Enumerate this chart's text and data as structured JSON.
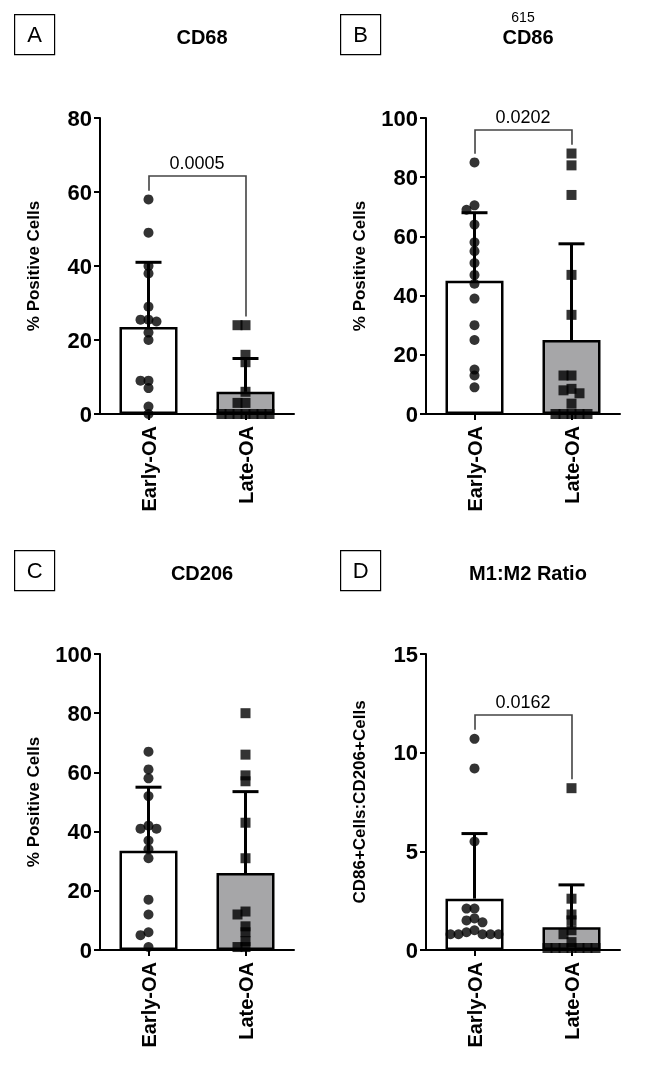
{
  "chart_data": [
    {
      "type": "bar",
      "title": "CD68",
      "ylabel": "% Positive Cells",
      "categories": [
        "Early-OA",
        "Late-OA"
      ],
      "ylim": [
        0,
        80
      ],
      "yticks": [
        0,
        20,
        40,
        60,
        80
      ],
      "grid": false,
      "annotations": [
        "A",
        "0.0005"
      ],
      "series": [
        {
          "type": "bar",
          "values": [
            23.5,
            6
          ],
          "colors": [
            "#ffffff",
            "#a6a6a8"
          ],
          "errors": [
            [
              23.5,
              41
            ],
            [
              6,
              15
            ]
          ]
        },
        {
          "type": "scatter",
          "marker": "circle",
          "color": "#000000",
          "x": [
            "Early-OA",
            "Early-OA",
            "Early-OA",
            "Early-OA",
            "Early-OA",
            "Early-OA",
            "Early-OA",
            "Early-OA",
            "Early-OA",
            "Early-OA",
            "Early-OA",
            "Early-OA",
            "Early-OA",
            "Early-OA",
            "Early-OA"
          ],
          "values": [
            58,
            49,
            40,
            38,
            29,
            25.5,
            25.5,
            25,
            22,
            20,
            9,
            9,
            7,
            2,
            0
          ]
        },
        {
          "type": "scatter",
          "marker": "square",
          "color": "#000000",
          "x": [
            "Late-OA",
            "Late-OA",
            "Late-OA",
            "Late-OA",
            "Late-OA",
            "Late-OA",
            "Late-OA",
            "Late-OA",
            "Late-OA",
            "Late-OA",
            "Late-OA",
            "Late-OA",
            "Late-OA",
            "Late-OA"
          ],
          "values": [
            24,
            24,
            16,
            14,
            6,
            3,
            3,
            0,
            0,
            0,
            0,
            0,
            0,
            0
          ]
        }
      ]
    },
    {
      "type": "bar",
      "title": "CD86",
      "ylabel": "% Positive Cells",
      "categories": [
        "Early-OA",
        "Late-OA"
      ],
      "ylim": [
        0,
        100
      ],
      "yticks": [
        0,
        20,
        40,
        60,
        80,
        100
      ],
      "grid": false,
      "annotations": [
        "B",
        "0.0202",
        "615"
      ],
      "series": [
        {
          "type": "bar",
          "values": [
            45,
            25
          ],
          "colors": [
            "#ffffff",
            "#a6a6a8"
          ],
          "errors": [
            [
              45,
              68
            ],
            [
              25,
              57.5
            ]
          ]
        },
        {
          "type": "scatter",
          "marker": "circle",
          "color": "#000000",
          "x": [
            "Early-OA",
            "Early-OA",
            "Early-OA",
            "Early-OA",
            "Early-OA",
            "Early-OA",
            "Early-OA",
            "Early-OA",
            "Early-OA",
            "Early-OA",
            "Early-OA",
            "Early-OA",
            "Early-OA",
            "Early-OA",
            "Early-OA"
          ],
          "values": [
            85,
            70.5,
            69,
            64,
            58,
            55,
            51,
            47,
            44,
            39,
            30,
            25,
            15,
            13,
            9
          ]
        },
        {
          "type": "scatter",
          "marker": "square",
          "color": "#000000",
          "x": [
            "Late-OA",
            "Late-OA",
            "Late-OA",
            "Late-OA",
            "Late-OA",
            "Late-OA",
            "Late-OA",
            "Late-OA",
            "Late-OA",
            "Late-OA",
            "Late-OA",
            "Late-OA",
            "Late-OA",
            "Late-OA",
            "Late-OA",
            "Late-OA"
          ],
          "values": [
            88,
            84,
            74,
            47,
            33.5,
            13,
            13,
            8.5,
            8,
            7,
            3.5,
            0,
            0,
            0,
            0,
            0
          ]
        }
      ]
    },
    {
      "type": "bar",
      "title": "CD206",
      "ylabel": "% Positive Cells",
      "categories": [
        "Early-OA",
        "Late-OA"
      ],
      "ylim": [
        0,
        100
      ],
      "yticks": [
        0,
        20,
        40,
        60,
        80,
        100
      ],
      "grid": false,
      "annotations": [
        "C"
      ],
      "series": [
        {
          "type": "bar",
          "values": [
            33.5,
            26
          ],
          "colors": [
            "#ffffff",
            "#a6a6a8"
          ],
          "errors": [
            [
              33.5,
              55
            ],
            [
              26,
              53.5
            ]
          ]
        },
        {
          "type": "scatter",
          "marker": "circle",
          "color": "#000000",
          "x": [
            "Early-OA",
            "Early-OA",
            "Early-OA",
            "Early-OA",
            "Early-OA",
            "Early-OA",
            "Early-OA",
            "Early-OA",
            "Early-OA",
            "Early-OA",
            "Early-OA",
            "Early-OA",
            "Early-OA",
            "Early-OA",
            "Early-OA"
          ],
          "values": [
            67,
            61,
            58,
            52,
            42,
            41,
            41,
            37,
            34,
            31,
            17,
            12,
            6,
            5,
            1
          ]
        },
        {
          "type": "scatter",
          "marker": "square",
          "color": "#000000",
          "x": [
            "Late-OA",
            "Late-OA",
            "Late-OA",
            "Late-OA",
            "Late-OA",
            "Late-OA",
            "Late-OA",
            "Late-OA",
            "Late-OA",
            "Late-OA",
            "Late-OA",
            "Late-OA",
            "Late-OA"
          ],
          "values": [
            80,
            66,
            59,
            57,
            43,
            31,
            13,
            12,
            8,
            6,
            3,
            1,
            1
          ]
        }
      ]
    },
    {
      "type": "bar",
      "title": "M1:M2 Ratio",
      "ylabel": "CD86+Cells:CD206+Cells",
      "categories": [
        "Early-OA",
        "Late-OA"
      ],
      "ylim": [
        0,
        15
      ],
      "yticks": [
        0,
        5,
        10,
        15
      ],
      "grid": false,
      "annotations": [
        "D",
        "0.0162"
      ],
      "series": [
        {
          "type": "bar",
          "values": [
            2.6,
            1.15
          ],
          "colors": [
            "#ffffff",
            "#a6a6a8"
          ],
          "errors": [
            [
              2.6,
              5.9
            ],
            [
              1.15,
              3.3
            ]
          ]
        },
        {
          "type": "scatter",
          "marker": "circle",
          "color": "#000000",
          "x": [
            "Early-OA",
            "Early-OA",
            "Early-OA",
            "Early-OA",
            "Early-OA",
            "Early-OA",
            "Early-OA",
            "Early-OA",
            "Early-OA",
            "Early-OA",
            "Early-OA",
            "Early-OA",
            "Early-OA",
            "Early-OA",
            "Early-OA"
          ],
          "values": [
            10.7,
            9.2,
            5.5,
            2.1,
            2.1,
            1.6,
            1.5,
            1.4,
            1,
            0.9,
            0.8,
            0.8,
            0.8,
            0.8,
            0.8
          ]
        },
        {
          "type": "scatter",
          "marker": "square",
          "color": "#000000",
          "x": [
            "Late-OA",
            "Late-OA",
            "Late-OA",
            "Late-OA",
            "Late-OA",
            "Late-OA",
            "Late-OA",
            "Late-OA",
            "Late-OA",
            "Late-OA",
            "Late-OA",
            "Late-OA",
            "Late-OA",
            "Late-OA"
          ],
          "values": [
            8.2,
            2.6,
            1.8,
            1.5,
            1,
            0.8,
            0.4,
            0.1,
            0.1,
            0.1,
            0.1,
            0.1,
            0.1,
            0.1
          ]
        }
      ]
    }
  ]
}
